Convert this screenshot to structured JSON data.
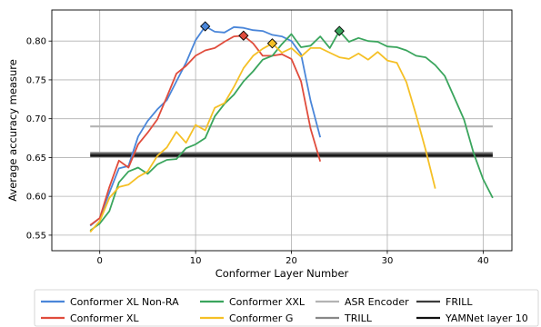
{
  "chart_data": {
    "type": "line",
    "title": "",
    "xlabel": "Conformer Layer Number",
    "ylabel": "Average accuracy measure",
    "xlim": [
      -5,
      43
    ],
    "ylim": [
      0.53,
      0.84
    ],
    "xticks": [
      0,
      10,
      20,
      30,
      40
    ],
    "yticks": [
      0.55,
      0.6,
      0.65,
      0.7,
      0.75,
      0.8
    ],
    "x_tick_labels": [
      "0",
      "10",
      "20",
      "30",
      "40"
    ],
    "y_tick_labels": [
      "0.55",
      "0.60",
      "0.65",
      "0.70",
      "0.75",
      "0.80"
    ],
    "grid": true,
    "legend_position": "bottom",
    "series": [
      {
        "name": "Conformer XL Non-RA",
        "color": "#4a86d9",
        "style": "solid",
        "marker_x": 11,
        "marker_y": 0.819,
        "x": [
          -1,
          0,
          1,
          2,
          3,
          4,
          5,
          6,
          7,
          8,
          9,
          10,
          11,
          12,
          13,
          14,
          15,
          16,
          17,
          18,
          19,
          20,
          21,
          22,
          23
        ],
        "y": [
          0.562,
          0.572,
          0.605,
          0.636,
          0.639,
          0.677,
          0.697,
          0.712,
          0.724,
          0.748,
          0.772,
          0.801,
          0.819,
          0.812,
          0.811,
          0.818,
          0.817,
          0.814,
          0.813,
          0.808,
          0.806,
          0.8,
          0.783,
          0.723,
          0.676
        ]
      },
      {
        "name": "Conformer XL",
        "color": "#e04c3c",
        "style": "solid",
        "marker_x": 15,
        "marker_y": 0.807,
        "x": [
          -1,
          0,
          1,
          2,
          3,
          4,
          5,
          6,
          7,
          8,
          9,
          10,
          11,
          12,
          13,
          14,
          15,
          16,
          17,
          18,
          19,
          20,
          21,
          22,
          23
        ],
        "y": [
          0.563,
          0.572,
          0.612,
          0.646,
          0.637,
          0.667,
          0.682,
          0.699,
          0.728,
          0.758,
          0.768,
          0.781,
          0.788,
          0.791,
          0.799,
          0.806,
          0.807,
          0.797,
          0.781,
          0.781,
          0.783,
          0.777,
          0.748,
          0.687,
          0.645
        ]
      },
      {
        "name": "Conformer XXL",
        "color": "#3aa55d",
        "style": "solid",
        "marker_x": 25,
        "marker_y": 0.813,
        "x": [
          -1,
          0,
          1,
          2,
          3,
          4,
          5,
          6,
          7,
          8,
          9,
          10,
          11,
          12,
          13,
          14,
          15,
          16,
          17,
          18,
          19,
          20,
          21,
          22,
          23,
          24,
          25,
          26,
          27,
          28,
          29,
          30,
          31,
          32,
          33,
          34,
          35,
          36,
          37,
          38,
          39,
          40,
          41
        ],
        "y": [
          0.556,
          0.565,
          0.581,
          0.618,
          0.632,
          0.637,
          0.629,
          0.641,
          0.647,
          0.648,
          0.662,
          0.667,
          0.675,
          0.703,
          0.719,
          0.731,
          0.748,
          0.761,
          0.776,
          0.781,
          0.796,
          0.809,
          0.792,
          0.794,
          0.806,
          0.791,
          0.813,
          0.799,
          0.804,
          0.8,
          0.799,
          0.793,
          0.792,
          0.788,
          0.781,
          0.779,
          0.769,
          0.755,
          0.727,
          0.699,
          0.656,
          0.622,
          0.598
        ]
      },
      {
        "name": "Conformer G",
        "color": "#f5c026",
        "style": "solid",
        "marker_x": 18,
        "marker_y": 0.797,
        "x": [
          -1,
          0,
          1,
          2,
          3,
          4,
          5,
          6,
          7,
          8,
          9,
          10,
          11,
          12,
          13,
          14,
          15,
          16,
          17,
          18,
          19,
          20,
          21,
          22,
          23,
          24,
          25,
          26,
          27,
          28,
          29,
          30,
          31,
          32,
          33,
          34,
          35
        ],
        "y": [
          0.554,
          0.568,
          0.598,
          0.612,
          0.615,
          0.625,
          0.632,
          0.652,
          0.663,
          0.683,
          0.669,
          0.692,
          0.685,
          0.714,
          0.72,
          0.741,
          0.765,
          0.781,
          0.79,
          0.797,
          0.785,
          0.791,
          0.78,
          0.791,
          0.791,
          0.785,
          0.779,
          0.777,
          0.784,
          0.776,
          0.786,
          0.775,
          0.772,
          0.747,
          0.705,
          0.66,
          0.61
        ]
      },
      {
        "name": "ASR Encoder",
        "color": "#b3b3b3",
        "style": "hline",
        "x": [
          -1,
          41
        ],
        "y": [
          0.69,
          0.69
        ]
      },
      {
        "name": "TRILL",
        "color": "#888888",
        "style": "hline",
        "x": [
          -1,
          41
        ],
        "y": [
          0.656,
          0.656
        ]
      },
      {
        "name": "FRILL",
        "color": "#3c3c3c",
        "style": "hline",
        "x": [
          -1,
          41
        ],
        "y": [
          0.654,
          0.654
        ]
      },
      {
        "name": "YAMNet layer 10",
        "color": "#111111",
        "style": "hline",
        "x": [
          -1,
          41
        ],
        "y": [
          0.652,
          0.652
        ]
      }
    ],
    "legend": [
      {
        "label": "Conformer XL Non-RA",
        "color": "#4a86d9"
      },
      {
        "label": "Conformer XXL",
        "color": "#3aa55d"
      },
      {
        "label": "ASR Encoder",
        "color": "#b3b3b3"
      },
      {
        "label": "FRILL",
        "color": "#3c3c3c"
      },
      {
        "label": "Conformer XL",
        "color": "#e04c3c"
      },
      {
        "label": "Conformer G",
        "color": "#f5c026"
      },
      {
        "label": "TRILL",
        "color": "#888888"
      },
      {
        "label": "YAMNet layer 10",
        "color": "#111111"
      }
    ]
  }
}
